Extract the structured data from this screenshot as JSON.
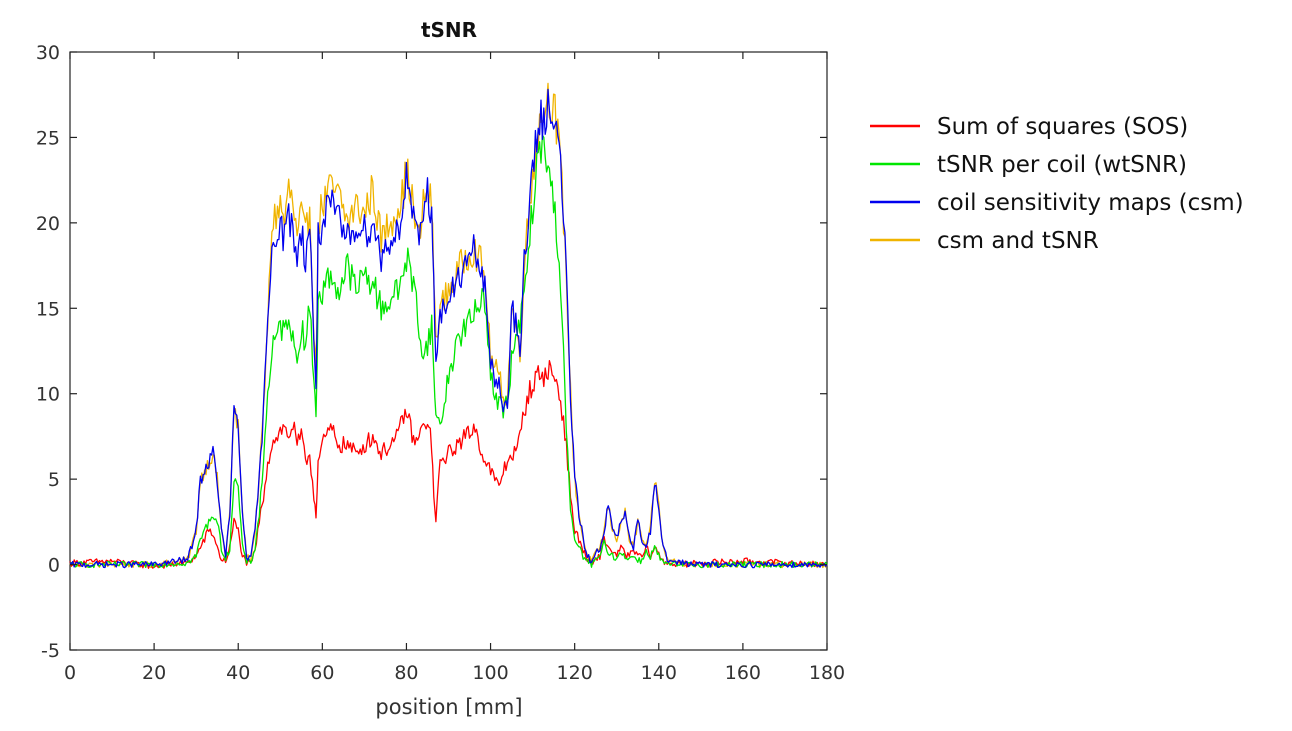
{
  "chart_data": {
    "type": "line",
    "title": "tSNR",
    "xlabel": "position [mm]",
    "ylabel": "",
    "xlim": [
      0,
      180
    ],
    "ylim": [
      -5,
      30
    ],
    "xticks": [
      0,
      20,
      40,
      60,
      80,
      100,
      120,
      140,
      160,
      180
    ],
    "yticks": [
      -5,
      0,
      5,
      10,
      15,
      20,
      25,
      30
    ],
    "xtick_labels": [
      "0",
      "20",
      "40",
      "60",
      "80",
      "100",
      "120",
      "140",
      "160",
      "180"
    ],
    "ytick_labels": [
      "-5",
      "0",
      "5",
      "10",
      "15",
      "20",
      "25",
      "30"
    ],
    "grid": false,
    "legend_position": "right-outside",
    "series": [
      {
        "name": "csm and tSNR",
        "color": "#f0b400",
        "x": [
          0,
          10,
          20,
          28,
          30,
          31,
          33,
          34,
          35,
          36,
          37,
          38,
          39,
          40,
          41,
          42,
          43,
          44,
          45,
          46,
          47,
          48,
          49,
          50,
          51,
          52,
          53,
          54,
          55,
          56,
          57,
          58,
          58.5,
          59,
          60,
          62,
          64,
          66,
          68,
          70,
          72,
          74,
          76,
          78,
          79,
          80,
          81,
          82,
          83,
          84,
          85,
          86,
          86.5,
          87,
          88,
          90,
          92,
          94,
          96,
          97,
          98,
          99,
          100,
          101,
          102,
          103,
          104,
          105,
          106,
          107,
          108,
          109,
          110,
          111,
          112,
          113,
          114,
          115,
          116,
          117,
          118,
          119,
          120,
          121,
          122,
          123,
          124,
          126,
          127,
          128,
          129,
          130,
          131,
          132,
          133,
          134,
          135,
          136,
          137,
          138,
          139,
          140,
          141,
          142,
          145,
          150,
          160,
          170,
          180
        ],
        "y": [
          0,
          0,
          0,
          0.3,
          2,
          5,
          6,
          6.5,
          5,
          2,
          0.5,
          3,
          9,
          8,
          3,
          0.5,
          0.3,
          2,
          5,
          9,
          14,
          20,
          20.5,
          21,
          20,
          22,
          21,
          19,
          20.5,
          19,
          21,
          14,
          11,
          20,
          21,
          22,
          21.5,
          20,
          21,
          20.5,
          22,
          19,
          20,
          21,
          21.5,
          23,
          22,
          20,
          19,
          21,
          22,
          21,
          17,
          13,
          15,
          16,
          17,
          18,
          18.5,
          18,
          17.5,
          16,
          12,
          11.5,
          11,
          10,
          9.5,
          15,
          14,
          12,
          18,
          20,
          23,
          25,
          26,
          27,
          27.5,
          27,
          25,
          22,
          17,
          10,
          5,
          3,
          1.5,
          0.5,
          0.2,
          1,
          2,
          3.5,
          2,
          1.5,
          2.5,
          3,
          1.5,
          1,
          2.5,
          1.5,
          1,
          2,
          5,
          3.5,
          1,
          0.3,
          0.1,
          0,
          0,
          0,
          0
        ]
      },
      {
        "name": "Sum of squares (SOS)",
        "color": "#ff0000",
        "x": [
          0,
          10,
          20,
          28,
          30,
          32,
          33,
          34,
          35,
          36,
          37,
          38,
          39,
          40,
          41,
          42,
          43,
          44,
          45,
          46,
          47,
          48,
          49,
          50,
          51,
          52,
          53,
          54,
          55,
          56,
          57,
          58,
          58.5,
          59,
          60,
          62,
          64,
          66,
          68,
          70,
          72,
          74,
          76,
          78,
          79,
          80,
          81,
          82,
          83,
          84,
          85,
          86,
          86.5,
          87,
          88,
          90,
          92,
          94,
          96,
          97,
          98,
          99,
          100,
          101,
          102,
          103,
          104,
          105,
          106,
          107,
          108,
          109,
          110,
          111,
          112,
          113,
          114,
          115,
          116,
          117,
          118,
          119,
          120,
          121,
          122,
          123,
          124,
          126,
          127,
          128,
          129,
          130,
          131,
          132,
          133,
          134,
          135,
          136,
          137,
          138,
          139,
          140,
          141,
          142,
          145,
          150,
          160,
          170,
          180
        ],
        "y": [
          0.1,
          0.2,
          -0.1,
          0.1,
          0.5,
          1.5,
          2,
          1.8,
          1,
          0.3,
          0.2,
          1,
          2.5,
          2,
          0.5,
          0.1,
          0,
          0.8,
          2.5,
          4,
          6,
          7,
          7.5,
          7.8,
          8,
          7.5,
          8.2,
          7,
          7.5,
          6,
          6.5,
          4,
          3,
          6,
          7,
          8,
          7,
          7,
          6.5,
          7,
          7.5,
          6.5,
          7,
          7.5,
          8.5,
          9,
          8,
          7,
          7.5,
          8,
          8.5,
          7,
          4,
          2.5,
          6,
          6.5,
          7,
          7.5,
          8,
          7.5,
          6.5,
          6,
          5.5,
          5,
          4.5,
          5.5,
          6,
          6.5,
          6.5,
          7.5,
          9,
          10,
          10.5,
          11,
          11.2,
          11,
          11.5,
          11,
          10.5,
          9,
          7,
          4,
          2,
          1.5,
          0.8,
          0.3,
          0,
          0.5,
          1.5,
          1,
          0.8,
          0.5,
          1,
          0.6,
          0.5,
          0.8,
          0.6,
          0.4,
          1,
          0.5,
          1,
          0.6,
          0.2,
          0.1,
          0,
          0.1,
          0.2,
          0.1,
          0
        ]
      },
      {
        "name": "tSNR per coil (wtSNR)",
        "color": "#00e600",
        "x": [
          0,
          10,
          20,
          28,
          30,
          31,
          33,
          34,
          35,
          36,
          37,
          38,
          39,
          40,
          41,
          42,
          43,
          44,
          45,
          46,
          47,
          48,
          49,
          50,
          51,
          52,
          53,
          54,
          55,
          56,
          57,
          58,
          58.5,
          59,
          60,
          62,
          64,
          66,
          68,
          70,
          72,
          74,
          76,
          78,
          79,
          80,
          81,
          82,
          83,
          84,
          85,
          86,
          86.5,
          87,
          88,
          90,
          92,
          94,
          96,
          97,
          98,
          99,
          100,
          101,
          102,
          103,
          104,
          105,
          106,
          107,
          108,
          109,
          110,
          111,
          112,
          113,
          114,
          115,
          116,
          117,
          118,
          119,
          120,
          121,
          122,
          123,
          124,
          126,
          127,
          128,
          129,
          130,
          131,
          132,
          133,
          134,
          135,
          136,
          137,
          138,
          139,
          140,
          141,
          142,
          145,
          150,
          160,
          170,
          180
        ],
        "y": [
          0,
          0,
          0,
          0.1,
          0.5,
          1.5,
          2.5,
          3,
          2.5,
          1,
          0.3,
          1,
          5,
          4.5,
          1,
          0.2,
          0.1,
          1,
          3,
          6,
          10,
          12.5,
          13,
          14,
          13.5,
          15,
          13,
          12,
          14,
          13,
          15,
          11,
          9,
          15,
          16,
          17,
          16,
          17.5,
          16,
          17,
          16.5,
          15,
          15.5,
          16,
          17,
          18,
          17,
          16,
          14,
          12,
          13,
          14,
          11,
          9,
          8,
          11,
          13,
          14,
          14.5,
          15,
          16,
          15,
          11,
          10,
          9.5,
          9,
          9.5,
          12,
          13,
          14,
          16,
          18,
          21,
          23,
          24.5,
          24,
          23,
          21,
          19,
          15,
          8,
          3,
          1.5,
          1,
          0.5,
          0.2,
          0,
          0.5,
          1.2,
          0.8,
          0.5,
          0.3,
          0.8,
          0.5,
          0.3,
          0.5,
          0.3,
          0.2,
          0.8,
          0.5,
          1,
          0.5,
          0.1,
          0,
          0,
          0,
          0,
          0,
          0
        ]
      },
      {
        "name": "coil sensitivity maps (csm)",
        "color": "#0000ee",
        "x": [
          0,
          10,
          20,
          28,
          30,
          31,
          33,
          34,
          35,
          36,
          37,
          38,
          39,
          40,
          41,
          42,
          43,
          44,
          45,
          46,
          47,
          48,
          49,
          50,
          51,
          52,
          53,
          54,
          55,
          56,
          57,
          58,
          58.5,
          59,
          60,
          62,
          64,
          66,
          68,
          70,
          72,
          74,
          76,
          78,
          79,
          80,
          81,
          82,
          83,
          84,
          85,
          86,
          86.5,
          87,
          88,
          90,
          92,
          94,
          96,
          97,
          98,
          99,
          100,
          101,
          102,
          103,
          104,
          105,
          106,
          107,
          108,
          109,
          110,
          111,
          112,
          113,
          114,
          115,
          116,
          117,
          118,
          119,
          120,
          121,
          122,
          123,
          124,
          126,
          127,
          128,
          129,
          130,
          131,
          132,
          133,
          134,
          135,
          136,
          137,
          138,
          139,
          140,
          141,
          142,
          145,
          150,
          160,
          170,
          180
        ],
        "y": [
          0,
          0,
          0,
          0.3,
          2,
          5,
          6,
          6.5,
          5,
          2,
          0.5,
          3,
          9,
          8,
          3,
          0.5,
          0.3,
          2,
          5,
          9,
          14,
          19,
          19.5,
          20,
          19,
          20.5,
          19.5,
          18,
          19.5,
          18,
          20,
          13,
          10.5,
          19,
          20,
          21,
          20,
          19,
          20,
          19.5,
          20,
          18,
          19,
          19.5,
          21,
          22.5,
          21.5,
          19.5,
          18.5,
          20.5,
          22,
          20.5,
          16,
          12.5,
          14.5,
          15.5,
          16.5,
          17.5,
          18.3,
          17.8,
          17,
          15.5,
          11.5,
          11,
          10.5,
          9.5,
          9.2,
          15,
          14,
          12,
          18,
          20,
          23,
          25,
          26,
          26.5,
          27,
          26.5,
          25,
          22,
          17,
          10,
          5,
          3,
          1.5,
          0.5,
          0.2,
          1,
          2,
          3.5,
          2,
          1.5,
          2.5,
          3,
          1.5,
          1,
          2.5,
          1.5,
          1,
          2,
          5,
          3.5,
          1,
          0.3,
          0.1,
          0,
          0,
          0,
          0
        ]
      }
    ],
    "legend_order": [
      "Sum of squares (SOS)",
      "tSNR per coil (wtSNR)",
      "coil sensitivity maps (csm)",
      "csm and tSNR"
    ]
  }
}
